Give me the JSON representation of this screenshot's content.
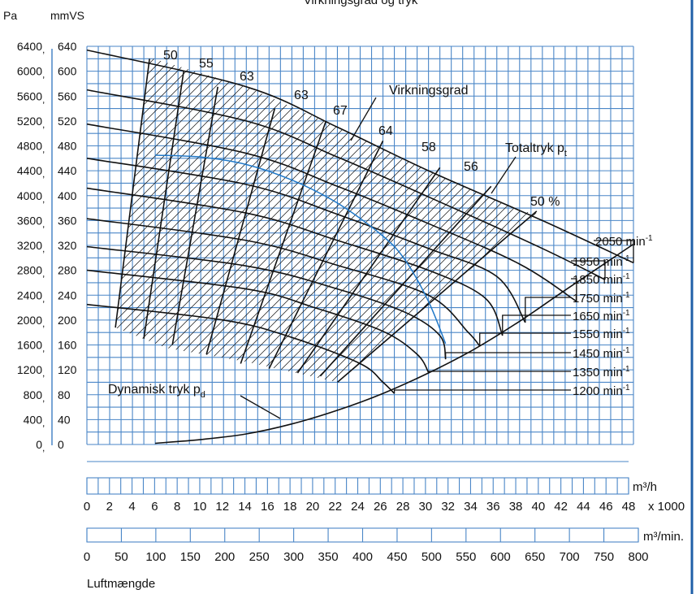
{
  "chart_data": {
    "type": "line",
    "title": "Virkningsgrad og tryk",
    "y_label_pa": "Pa",
    "y_label_mmvs": "mmVS",
    "xlabel": "Luftmængde",
    "ylim_mmvs": [
      0,
      640
    ],
    "xlim_m3h": [
      0,
      48000
    ],
    "grid": true,
    "y_ticks_pa": [
      "0",
      "400",
      "800",
      "1200",
      "1600",
      "2000",
      "2400",
      "2800",
      "3200",
      "3600",
      "4000",
      "4400",
      "4800",
      "5200",
      "5600",
      "6000",
      "6400"
    ],
    "y_ticks_mmvs": [
      "0",
      "40",
      "80",
      "120",
      "160",
      "200",
      "240",
      "280",
      "320",
      "360",
      "400",
      "440",
      "480",
      "520",
      "560",
      "600",
      "640"
    ],
    "x_ticks_m3h": [
      "0",
      "2",
      "4",
      "6",
      "8",
      "10",
      "12",
      "14",
      "16",
      "18",
      "20",
      "22",
      "24",
      "26",
      "28",
      "30",
      "32",
      "34",
      "36",
      "38",
      "40",
      "42",
      "44",
      "46",
      "48"
    ],
    "x_unit_m3h": "m³/h",
    "x_multiplier": "x 1000",
    "x_ticks_m3min": [
      "0",
      "50",
      "100",
      "150",
      "200",
      "250",
      "300",
      "350",
      "400",
      "450",
      "500",
      "550",
      "600",
      "650",
      "700",
      "750",
      "800"
    ],
    "x_unit_m3min": "m³/min.",
    "speed_unit": "min",
    "speed_unit_exp": "-1",
    "speed_curves": [
      {
        "rpm": "2050",
        "points": [
          [
            0,
            634
          ],
          [
            14,
            575
          ],
          [
            22,
            510
          ],
          [
            30,
            440
          ],
          [
            40,
            360
          ],
          [
            48,
            292
          ]
        ]
      },
      {
        "rpm": "1950",
        "points": [
          [
            0,
            570
          ],
          [
            14,
            520
          ],
          [
            22,
            462
          ],
          [
            30,
            398
          ],
          [
            40,
            315
          ],
          [
            45.5,
            265
          ]
        ]
      },
      {
        "rpm": "1850",
        "points": [
          [
            0,
            515
          ],
          [
            14,
            468
          ],
          [
            22,
            415
          ],
          [
            30,
            355
          ],
          [
            38,
            290
          ],
          [
            43,
            230
          ]
        ]
      },
      {
        "rpm": "1750",
        "points": [
          [
            0,
            460
          ],
          [
            14,
            418
          ],
          [
            22,
            370
          ],
          [
            30,
            315
          ],
          [
            36,
            270
          ],
          [
            38.5,
            196
          ]
        ]
      },
      {
        "rpm": "1650",
        "points": [
          [
            0,
            412
          ],
          [
            14,
            372
          ],
          [
            22,
            328
          ],
          [
            30,
            280
          ],
          [
            35,
            235
          ],
          [
            36.5,
            175
          ]
        ]
      },
      {
        "rpm": "1550",
        "points": [
          [
            0,
            363
          ],
          [
            14,
            328
          ],
          [
            22,
            288
          ],
          [
            30,
            240
          ],
          [
            33.5,
            180
          ],
          [
            34.5,
            158
          ]
        ]
      },
      {
        "rpm": "1450",
        "points": [
          [
            0,
            318
          ],
          [
            14,
            287
          ],
          [
            22,
            250
          ],
          [
            28,
            212
          ],
          [
            31,
            175
          ],
          [
            31.5,
            137
          ]
        ]
      },
      {
        "rpm": "1350",
        "points": [
          [
            0,
            280
          ],
          [
            14,
            250
          ],
          [
            20,
            220
          ],
          [
            26,
            182
          ],
          [
            29,
            145
          ],
          [
            30,
            116
          ]
        ]
      },
      {
        "rpm": "1200",
        "points": [
          [
            0,
            225
          ],
          [
            12,
            200
          ],
          [
            18,
            172
          ],
          [
            24,
            130
          ],
          [
            26,
            100
          ],
          [
            27,
            82
          ]
        ]
      }
    ],
    "efficiency_labels": [
      "50",
      "55",
      "63",
      "63",
      "67",
      "64",
      "58",
      "56",
      "50 %"
    ],
    "efficiency_label_name": "Virkningsgrad",
    "total_pressure_label": "Totaltryk p",
    "total_pressure_sub": "t",
    "dynamic_pressure_label": "Dynamisk tryk p",
    "dynamic_pressure_sub": "d",
    "dynamic_curve": [
      [
        6,
        2
      ],
      [
        10,
        8
      ],
      [
        14,
        17
      ],
      [
        18,
        33
      ],
      [
        22,
        55
      ],
      [
        26,
        82
      ],
      [
        30,
        115
      ],
      [
        34,
        153
      ],
      [
        38,
        198
      ],
      [
        42,
        248
      ],
      [
        48,
        322
      ]
    ],
    "operating_curve": [
      [
        6,
        465
      ],
      [
        10,
        462
      ],
      [
        14,
        450
      ],
      [
        18,
        425
      ],
      [
        22,
        388
      ],
      [
        26,
        335
      ],
      [
        28,
        295
      ],
      [
        30,
        230
      ],
      [
        31.5,
        162
      ]
    ],
    "colors": {
      "grid": "#4a86c7",
      "curves": "#111111",
      "operating_curve": "#1f78c8",
      "right_edge": "#1f5fa8"
    }
  }
}
